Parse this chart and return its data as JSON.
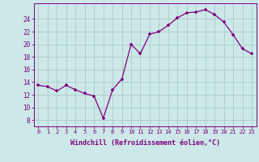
{
  "x": [
    0,
    1,
    2,
    3,
    4,
    5,
    6,
    7,
    8,
    9,
    10,
    11,
    12,
    13,
    14,
    15,
    16,
    17,
    18,
    19,
    20,
    21,
    22,
    23
  ],
  "y": [
    13.5,
    13.3,
    12.6,
    13.5,
    12.8,
    12.2,
    11.8,
    8.3,
    12.8,
    14.5,
    20.0,
    18.5,
    21.6,
    22.0,
    23.0,
    24.2,
    25.0,
    25.1,
    25.5,
    24.7,
    23.5,
    21.5,
    19.3,
    18.5
  ],
  "line_color": "#800080",
  "marker": "P",
  "bg_color": "#cce8e8",
  "grid_color": "#aacccc",
  "xlabel": "Windchill (Refroidissement éolien,°C)",
  "ylabel_ticks": [
    8,
    10,
    12,
    14,
    16,
    18,
    20,
    22,
    24
  ],
  "xlim": [
    -0.5,
    23.5
  ],
  "ylim": [
    7.0,
    26.5
  ],
  "xticks": [
    0,
    1,
    2,
    3,
    4,
    5,
    6,
    7,
    8,
    9,
    10,
    11,
    12,
    13,
    14,
    15,
    16,
    17,
    18,
    19,
    20,
    21,
    22,
    23
  ],
  "label_color": "#800080",
  "tick_color": "#800080",
  "axis_color": "#800080",
  "tick_fontsize": 5.0,
  "label_fontsize": 6.0
}
